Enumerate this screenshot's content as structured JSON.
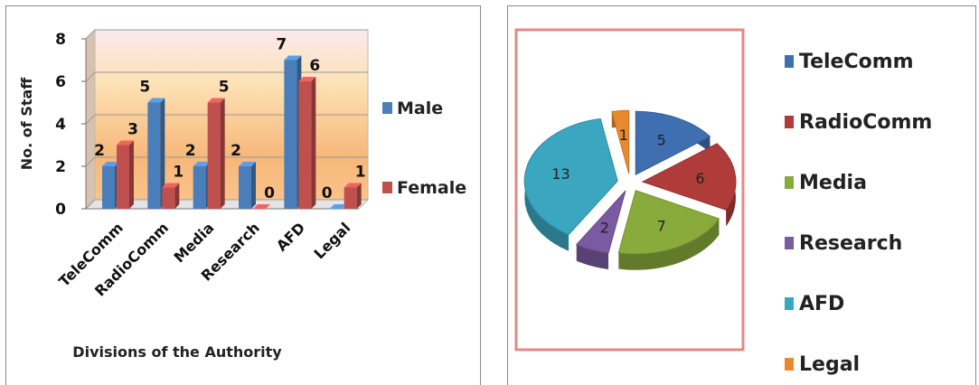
{
  "chart_data": [
    {
      "type": "bar",
      "categories": [
        "TeleComm",
        "RadioComm",
        "Media",
        "Research",
        "AFD",
        "Legal"
      ],
      "series": [
        {
          "name": "Male",
          "values": [
            2,
            5,
            2,
            2,
            7,
            0
          ],
          "color": "#4a7ebb"
        },
        {
          "name": "Female",
          "values": [
            3,
            1,
            5,
            0,
            6,
            1
          ],
          "color": "#c0504d"
        }
      ],
      "xlabel": "Divisions of the Authority",
      "ylabel": "No. of Staff",
      "ylim": [
        0,
        8
      ],
      "yticks": [
        0,
        2,
        4,
        6,
        8
      ],
      "grid": true,
      "legend": "right"
    },
    {
      "type": "pie",
      "categories": [
        "TeleComm",
        "RadioComm",
        "Media",
        "Research",
        "AFD",
        "Legal"
      ],
      "values": [
        5,
        6,
        7,
        2,
        13,
        1
      ],
      "colors": [
        "#3f6fb0",
        "#b03c3a",
        "#88ab3c",
        "#7a5aa0",
        "#3aa6c0",
        "#e8892e"
      ],
      "legend": "right",
      "exploded": true
    }
  ]
}
